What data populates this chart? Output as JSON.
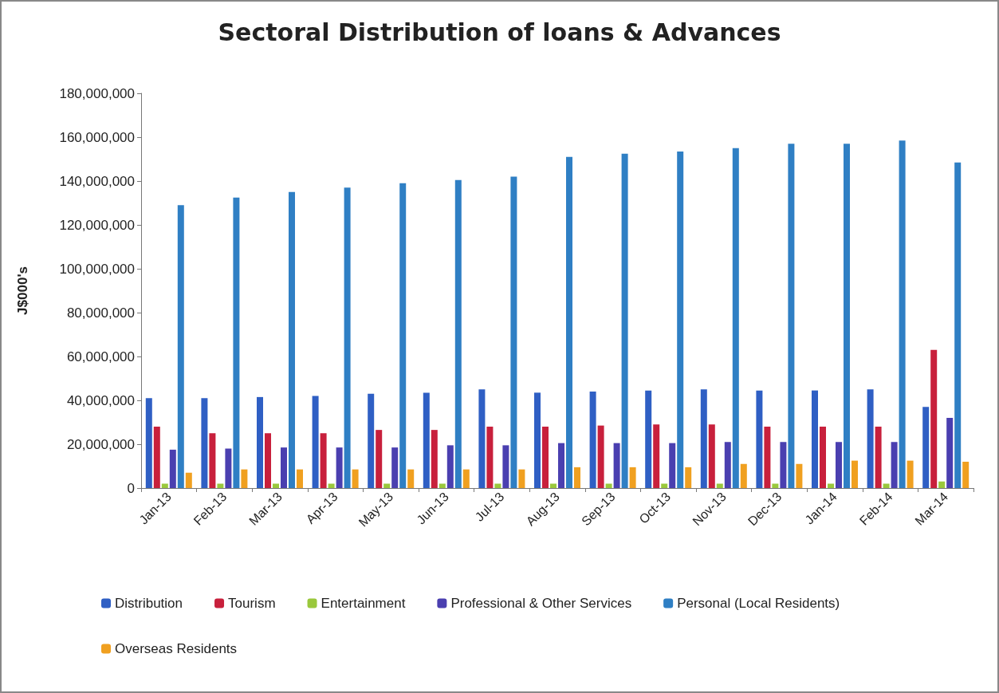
{
  "chart_data": {
    "type": "bar",
    "title": "Sectoral Distribution of loans & Advances",
    "ylabel": "J$000's",
    "categories": [
      "Jan-13",
      "Feb-13",
      "Mar-13",
      "Apr-13",
      "May-13",
      "Jun-13",
      "Jul-13",
      "Aug-13",
      "Sep-13",
      "Oct-13",
      "Nov-13",
      "Dec-13",
      "Jan-14",
      "Feb-14",
      "Mar-14"
    ],
    "series": [
      {
        "name": "Distribution",
        "color": "#2f5fc4",
        "values": [
          41000000,
          41000000,
          41500000,
          42000000,
          43000000,
          43500000,
          45000000,
          43500000,
          44000000,
          44500000,
          45000000,
          44500000,
          44500000,
          45000000,
          37000000
        ]
      },
      {
        "name": "Tourism",
        "color": "#c8203c",
        "values": [
          28000000,
          25000000,
          25000000,
          25000000,
          26500000,
          26500000,
          28000000,
          28000000,
          28500000,
          29000000,
          29000000,
          28000000,
          28000000,
          28000000,
          63000000
        ]
      },
      {
        "name": "Entertainment",
        "color": "#9ac83c",
        "values": [
          2000000,
          2000000,
          2000000,
          2000000,
          2000000,
          2000000,
          2000000,
          2000000,
          2000000,
          2000000,
          2000000,
          2000000,
          2000000,
          2000000,
          3000000
        ]
      },
      {
        "name": "Professional & Other Services",
        "color": "#4a3fb0",
        "values": [
          17500000,
          18000000,
          18500000,
          18500000,
          18500000,
          19500000,
          19500000,
          20500000,
          20500000,
          20500000,
          21000000,
          21000000,
          21000000,
          21000000,
          32000000
        ]
      },
      {
        "name": "Personal (Local Residents)",
        "color": "#2f7fc4",
        "values": [
          129000000,
          132500000,
          135000000,
          137000000,
          139000000,
          140500000,
          142000000,
          151000000,
          152500000,
          153500000,
          155000000,
          157000000,
          157000000,
          158500000,
          148500000
        ]
      },
      {
        "name": "Overseas Residents",
        "color": "#f0a020",
        "values": [
          7000000,
          8500000,
          8500000,
          8500000,
          8500000,
          8500000,
          8500000,
          9500000,
          9500000,
          9500000,
          11000000,
          11000000,
          12500000,
          12500000,
          12000000
        ]
      }
    ],
    "ylim": [
      0,
      180000000
    ],
    "yticks": [
      0,
      {
        "value": 20000000,
        "label": "20,000,000"
      },
      {
        "value": 40000000,
        "label": "40,000,000"
      },
      {
        "value": 60000000,
        "label": "60,000,000"
      },
      {
        "value": 80000000,
        "label": "80,000,000"
      },
      {
        "value": 100000000,
        "label": "100,000,000"
      },
      {
        "value": 120000000,
        "label": "120,000,000"
      },
      {
        "value": 140000000,
        "label": "140,000,000"
      },
      {
        "value": 160000000,
        "label": "160,000,000"
      },
      {
        "value": 180000000,
        "label": "180,000,000"
      }
    ],
    "grid": false,
    "legend": "bottom"
  }
}
